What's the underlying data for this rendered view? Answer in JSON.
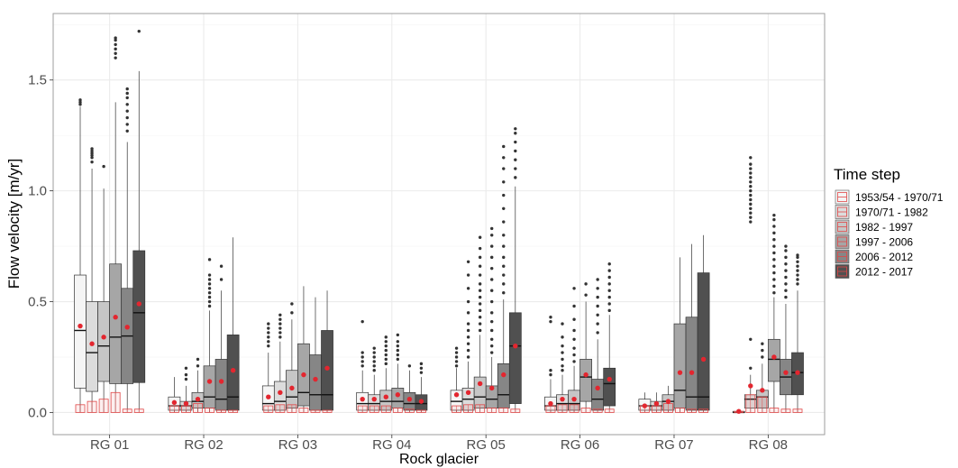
{
  "chart_data": {
    "type": "boxplot",
    "xlabel": "Rock glacier",
    "ylabel": "Flow velocity [m/yr]",
    "ylim": [
      -0.1,
      1.8
    ],
    "y_ticks": [
      0.0,
      0.5,
      1.0,
      1.5
    ],
    "y_tick_labels": [
      "0.0",
      "0.5",
      "1.0",
      "1.5"
    ],
    "grid": true,
    "legend": {
      "title": "Time step",
      "position": "right"
    },
    "colors": {
      "mean_point": "#e3262f",
      "red_box": "#e04848",
      "box_outline": "#333333",
      "outlier": "#333333",
      "grid_major": "#ebebeb",
      "grid_minor": "#f4f4f4",
      "panel_border": "#9e9e9e"
    },
    "categories": [
      "RG 01",
      "RG 02",
      "RG 03",
      "RG 04",
      "RG 05",
      "RG 06",
      "RG 07",
      "RG 08"
    ],
    "series": [
      {
        "name": "1953/54 - 1970/71",
        "fill": "#f5f5f5",
        "boxes": [
          {
            "min": 0,
            "q1": 0.11,
            "median": 0.37,
            "q3": 0.62,
            "max": 1.38,
            "mean": 0.39,
            "outliers": [
              1.39,
              1.4,
              1.41
            ],
            "red_box_top": 0.035
          },
          {
            "min": 0,
            "q1": 0.01,
            "median": 0.03,
            "q3": 0.07,
            "max": 0.16,
            "mean": 0.045,
            "outliers": [],
            "red_box_top": 0.03
          },
          {
            "min": 0,
            "q1": 0.01,
            "median": 0.04,
            "q3": 0.12,
            "max": 0.27,
            "mean": 0.07,
            "outliers": [
              0.3,
              0.32,
              0.34,
              0.36,
              0.38,
              0.4
            ],
            "red_box_top": 0.03
          },
          {
            "min": 0,
            "q1": 0.01,
            "median": 0.04,
            "q3": 0.09,
            "max": 0.19,
            "mean": 0.06,
            "outliers": [
              0.21,
              0.23,
              0.25,
              0.27,
              0.41
            ],
            "red_box_top": 0.03
          },
          {
            "min": 0,
            "q1": 0.01,
            "median": 0.05,
            "q3": 0.1,
            "max": 0.2,
            "mean": 0.08,
            "outliers": [
              0.21,
              0.23,
              0.25,
              0.27,
              0.29
            ],
            "red_box_top": 0.03
          },
          {
            "min": 0,
            "q1": 0.01,
            "median": 0.03,
            "q3": 0.07,
            "max": 0.15,
            "mean": 0.04,
            "outliers": [
              0.17,
              0.19,
              0.41,
              0.43
            ],
            "red_box_top": 0.03
          },
          {
            "min": 0,
            "q1": 0.01,
            "median": 0.03,
            "q3": 0.06,
            "max": 0.09,
            "mean": 0.03,
            "outliers": [],
            "red_box_top": 0.03
          },
          {
            "min": 0,
            "q1": 0,
            "median": 0,
            "q3": 0.005,
            "max": 0.01,
            "mean": 0.005,
            "outliers": [],
            "red_box_top": 0.005
          }
        ]
      },
      {
        "name": "1970/71 - 1982",
        "fill": "#dcdcdc",
        "boxes": [
          {
            "min": 0,
            "q1": 0.095,
            "median": 0.27,
            "q3": 0.5,
            "max": 1.1,
            "mean": 0.31,
            "outliers": [
              1.13,
              1.15,
              1.16,
              1.17,
              1.18,
              1.19
            ],
            "red_box_top": 0.05
          },
          {
            "min": 0,
            "q1": 0.01,
            "median": 0.03,
            "q3": 0.05,
            "max": 0.12,
            "mean": 0.04,
            "outliers": [
              0.15,
              0.17,
              0.2
            ],
            "red_box_top": 0.03
          },
          {
            "min": 0,
            "q1": 0.01,
            "median": 0.05,
            "q3": 0.14,
            "max": 0.32,
            "mean": 0.09,
            "outliers": [
              0.34,
              0.36,
              0.38,
              0.4,
              0.42,
              0.44
            ],
            "red_box_top": 0.035
          },
          {
            "min": 0,
            "q1": 0.01,
            "median": 0.04,
            "q3": 0.08,
            "max": 0.17,
            "mean": 0.06,
            "outliers": [
              0.19,
              0.21,
              0.23,
              0.25,
              0.27,
              0.29
            ],
            "red_box_top": 0.03
          },
          {
            "min": 0,
            "q1": 0.01,
            "median": 0.06,
            "q3": 0.11,
            "max": 0.23,
            "mean": 0.09,
            "outliers": [
              0.25,
              0.28,
              0.31,
              0.34,
              0.37,
              0.4,
              0.45,
              0.5,
              0.56,
              0.62,
              0.68
            ],
            "red_box_top": 0.035
          },
          {
            "min": 0,
            "q1": 0.01,
            "median": 0.04,
            "q3": 0.08,
            "max": 0.17,
            "mean": 0.06,
            "outliers": [
              0.19,
              0.21,
              0.24,
              0.27,
              0.3,
              0.34,
              0.4
            ],
            "red_box_top": 0.035
          },
          {
            "min": 0,
            "q1": 0.01,
            "median": 0.03,
            "q3": 0.05,
            "max": 0.09,
            "mean": 0.04,
            "outliers": [],
            "red_box_top": 0.03
          },
          {
            "min": 0,
            "q1": 0.02,
            "median": 0.06,
            "q3": 0.08,
            "max": 0.17,
            "mean": 0.12,
            "outliers": [
              0.2,
              0.33,
              0.86,
              0.88,
              0.9,
              0.92,
              0.94,
              0.96,
              0.98,
              1.0,
              1.02,
              1.04,
              1.06,
              1.08,
              1.1,
              1.12,
              1.15
            ],
            "red_box_top": 0.08
          }
        ]
      },
      {
        "name": "1982 - 1997",
        "fill": "#c6c6c6",
        "boxes": [
          {
            "min": 0,
            "q1": 0.14,
            "median": 0.3,
            "q3": 0.5,
            "max": 1.01,
            "mean": 0.34,
            "outliers": [
              1.11
            ],
            "red_box_top": 0.06
          },
          {
            "min": 0,
            "q1": 0.02,
            "median": 0.05,
            "q3": 0.09,
            "max": 0.19,
            "mean": 0.06,
            "outliers": [
              0.21,
              0.24
            ],
            "red_box_top": 0.04
          },
          {
            "min": 0,
            "q1": 0.02,
            "median": 0.07,
            "q3": 0.19,
            "max": 0.42,
            "mean": 0.11,
            "outliers": [
              0.45,
              0.49
            ],
            "red_box_top": 0.035
          },
          {
            "min": 0,
            "q1": 0.01,
            "median": 0.05,
            "q3": 0.1,
            "max": 0.2,
            "mean": 0.07,
            "outliers": [
              0.22,
              0.24,
              0.26,
              0.28,
              0.3,
              0.32,
              0.34
            ],
            "red_box_top": 0.03
          },
          {
            "min": 0,
            "q1": 0.02,
            "median": 0.07,
            "q3": 0.16,
            "max": 0.35,
            "mean": 0.13,
            "outliers": [
              0.37,
              0.4,
              0.43,
              0.46,
              0.49,
              0.52,
              0.55,
              0.58,
              0.62,
              0.66,
              0.7,
              0.74,
              0.79
            ],
            "red_box_top": 0.035
          },
          {
            "min": 0,
            "q1": 0.01,
            "median": 0.04,
            "q3": 0.1,
            "max": 0.21,
            "mean": 0.06,
            "outliers": [
              0.23,
              0.26,
              0.29,
              0.33,
              0.37,
              0.42,
              0.48,
              0.56
            ],
            "red_box_top": 0.035
          },
          {
            "min": 0,
            "q1": 0.01,
            "median": 0.05,
            "q3": 0.08,
            "max": 0.12,
            "mean": 0.05,
            "outliers": [],
            "red_box_top": 0.04
          },
          {
            "min": 0,
            "q1": 0.02,
            "median": 0.07,
            "q3": 0.1,
            "max": 0.22,
            "mean": 0.1,
            "outliers": [
              0.25,
              0.28,
              0.31
            ],
            "red_box_top": 0.07
          }
        ]
      },
      {
        "name": "1997 - 2006",
        "fill": "#a6a6a6",
        "boxes": [
          {
            "min": 0,
            "q1": 0.13,
            "median": 0.34,
            "q3": 0.67,
            "max": 1.4,
            "mean": 0.43,
            "outliers": [
              1.6,
              1.62,
              1.64,
              1.66,
              1.68,
              1.69
            ],
            "red_box_top": 0.09
          },
          {
            "min": 0,
            "q1": 0.02,
            "median": 0.07,
            "q3": 0.21,
            "max": 0.46,
            "mean": 0.14,
            "outliers": [
              0.48,
              0.5,
              0.52,
              0.54,
              0.56,
              0.58,
              0.6,
              0.62,
              0.69
            ],
            "red_box_top": 0.02
          },
          {
            "min": 0,
            "q1": 0.03,
            "median": 0.09,
            "q3": 0.31,
            "max": 0.57,
            "mean": 0.17,
            "outliers": [],
            "red_box_top": 0.02
          },
          {
            "min": 0,
            "q1": 0.02,
            "median": 0.05,
            "q3": 0.11,
            "max": 0.22,
            "mean": 0.08,
            "outliers": [
              0.24,
              0.26,
              0.28,
              0.3,
              0.32,
              0.35
            ],
            "red_box_top": 0.02
          },
          {
            "min": 0,
            "q1": 0.02,
            "median": 0.06,
            "q3": 0.12,
            "max": 0.25,
            "mean": 0.11,
            "outliers": [
              0.27,
              0.3,
              0.33,
              0.37,
              0.41,
              0.45,
              0.5,
              0.55,
              0.6,
              0.65,
              0.7,
              0.75,
              0.8,
              0.83
            ],
            "red_box_top": 0.02
          },
          {
            "min": 0,
            "q1": 0.05,
            "median": 0.16,
            "q3": 0.24,
            "max": 0.5,
            "mean": 0.17,
            "outliers": [
              0.53,
              0.58
            ],
            "red_box_top": 0.02
          },
          {
            "min": 0,
            "q1": 0.02,
            "median": 0.1,
            "q3": 0.4,
            "max": 0.7,
            "mean": 0.18,
            "outliers": [],
            "red_box_top": 0.02
          },
          {
            "min": 0,
            "q1": 0.14,
            "median": 0.24,
            "q3": 0.33,
            "max": 0.52,
            "mean": 0.25,
            "outliers": [
              0.54,
              0.57,
              0.6,
              0.63,
              0.66,
              0.69,
              0.72,
              0.75,
              0.78,
              0.81,
              0.84,
              0.87,
              0.89
            ],
            "red_box_top": 0.02
          }
        ]
      },
      {
        "name": "2006 - 2012",
        "fill": "#868686",
        "boxes": [
          {
            "min": 0,
            "q1": 0.13,
            "median": 0.345,
            "q3": 0.56,
            "max": 1.22,
            "mean": 0.385,
            "outliers": [
              1.27,
              1.3,
              1.33,
              1.36,
              1.39,
              1.42,
              1.44,
              1.46
            ],
            "red_box_top": 0.015
          },
          {
            "min": 0,
            "q1": 0.01,
            "median": 0.06,
            "q3": 0.24,
            "max": 0.55,
            "mean": 0.14,
            "outliers": [
              0.6,
              0.66
            ],
            "red_box_top": 0.01
          },
          {
            "min": 0,
            "q1": 0.01,
            "median": 0.08,
            "q3": 0.26,
            "max": 0.52,
            "mean": 0.15,
            "outliers": [],
            "red_box_top": 0.01
          },
          {
            "min": 0,
            "q1": 0.01,
            "median": 0.04,
            "q3": 0.09,
            "max": 0.19,
            "mean": 0.06,
            "outliers": [
              0.21
            ],
            "red_box_top": 0.015
          },
          {
            "min": 0,
            "q1": 0.02,
            "median": 0.08,
            "q3": 0.22,
            "max": 0.51,
            "mean": 0.17,
            "outliers": [
              0.54,
              0.58,
              0.62,
              0.66,
              0.7,
              0.75,
              0.8,
              0.86,
              0.92,
              0.98,
              1.04,
              1.1,
              1.15,
              1.2
            ],
            "red_box_top": 0.02
          },
          {
            "min": 0,
            "q1": 0.01,
            "median": 0.06,
            "q3": 0.15,
            "max": 0.33,
            "mean": 0.11,
            "outliers": [
              0.36,
              0.4,
              0.44,
              0.48,
              0.52,
              0.56,
              0.6
            ],
            "red_box_top": 0.015
          },
          {
            "min": 0,
            "q1": 0.01,
            "median": 0.07,
            "q3": 0.43,
            "max": 0.76,
            "mean": 0.18,
            "outliers": [],
            "red_box_top": 0.015
          },
          {
            "min": 0,
            "q1": 0.08,
            "median": 0.16,
            "q3": 0.24,
            "max": 0.49,
            "mean": 0.18,
            "outliers": [
              0.52,
              0.55,
              0.58,
              0.61,
              0.64,
              0.67,
              0.7,
              0.73,
              0.75
            ],
            "red_box_top": 0.015
          }
        ]
      },
      {
        "name": "2012 - 2017",
        "fill": "#505050",
        "boxes": [
          {
            "min": 0,
            "q1": 0.135,
            "median": 0.45,
            "q3": 0.73,
            "max": 1.54,
            "mean": 0.49,
            "outliers": [
              1.72
            ],
            "red_box_top": 0.015
          },
          {
            "min": 0,
            "q1": 0.01,
            "median": 0.07,
            "q3": 0.35,
            "max": 0.79,
            "mean": 0.19,
            "outliers": [],
            "red_box_top": 0.01
          },
          {
            "min": 0,
            "q1": 0.01,
            "median": 0.08,
            "q3": 0.37,
            "max": 0.55,
            "mean": 0.2,
            "outliers": [],
            "red_box_top": 0.01
          },
          {
            "min": 0,
            "q1": 0.01,
            "median": 0.04,
            "q3": 0.08,
            "max": 0.16,
            "mean": 0.05,
            "outliers": [
              0.18,
              0.2,
              0.22
            ],
            "red_box_top": 0.01
          },
          {
            "min": 0,
            "q1": 0.04,
            "median": 0.3,
            "q3": 0.45,
            "max": 1.02,
            "mean": 0.3,
            "outliers": [
              1.06,
              1.1,
              1.14,
              1.18,
              1.22,
              1.26,
              1.28
            ],
            "red_box_top": 0.015
          },
          {
            "min": 0,
            "q1": 0.03,
            "median": 0.13,
            "q3": 0.2,
            "max": 0.44,
            "mean": 0.15,
            "outliers": [
              0.46,
              0.49,
              0.52,
              0.55,
              0.58,
              0.61,
              0.64,
              0.67
            ],
            "red_box_top": 0.015
          },
          {
            "min": 0,
            "q1": 0.01,
            "median": 0.07,
            "q3": 0.63,
            "max": 0.8,
            "mean": 0.24,
            "outliers": [],
            "red_box_top": 0.015
          },
          {
            "min": 0,
            "q1": 0.08,
            "median": 0.18,
            "q3": 0.27,
            "max": 0.55,
            "mean": 0.18,
            "outliers": [
              0.58,
              0.6,
              0.62,
              0.64,
              0.66,
              0.68,
              0.7,
              0.71
            ],
            "red_box_top": 0.015
          }
        ]
      }
    ]
  }
}
